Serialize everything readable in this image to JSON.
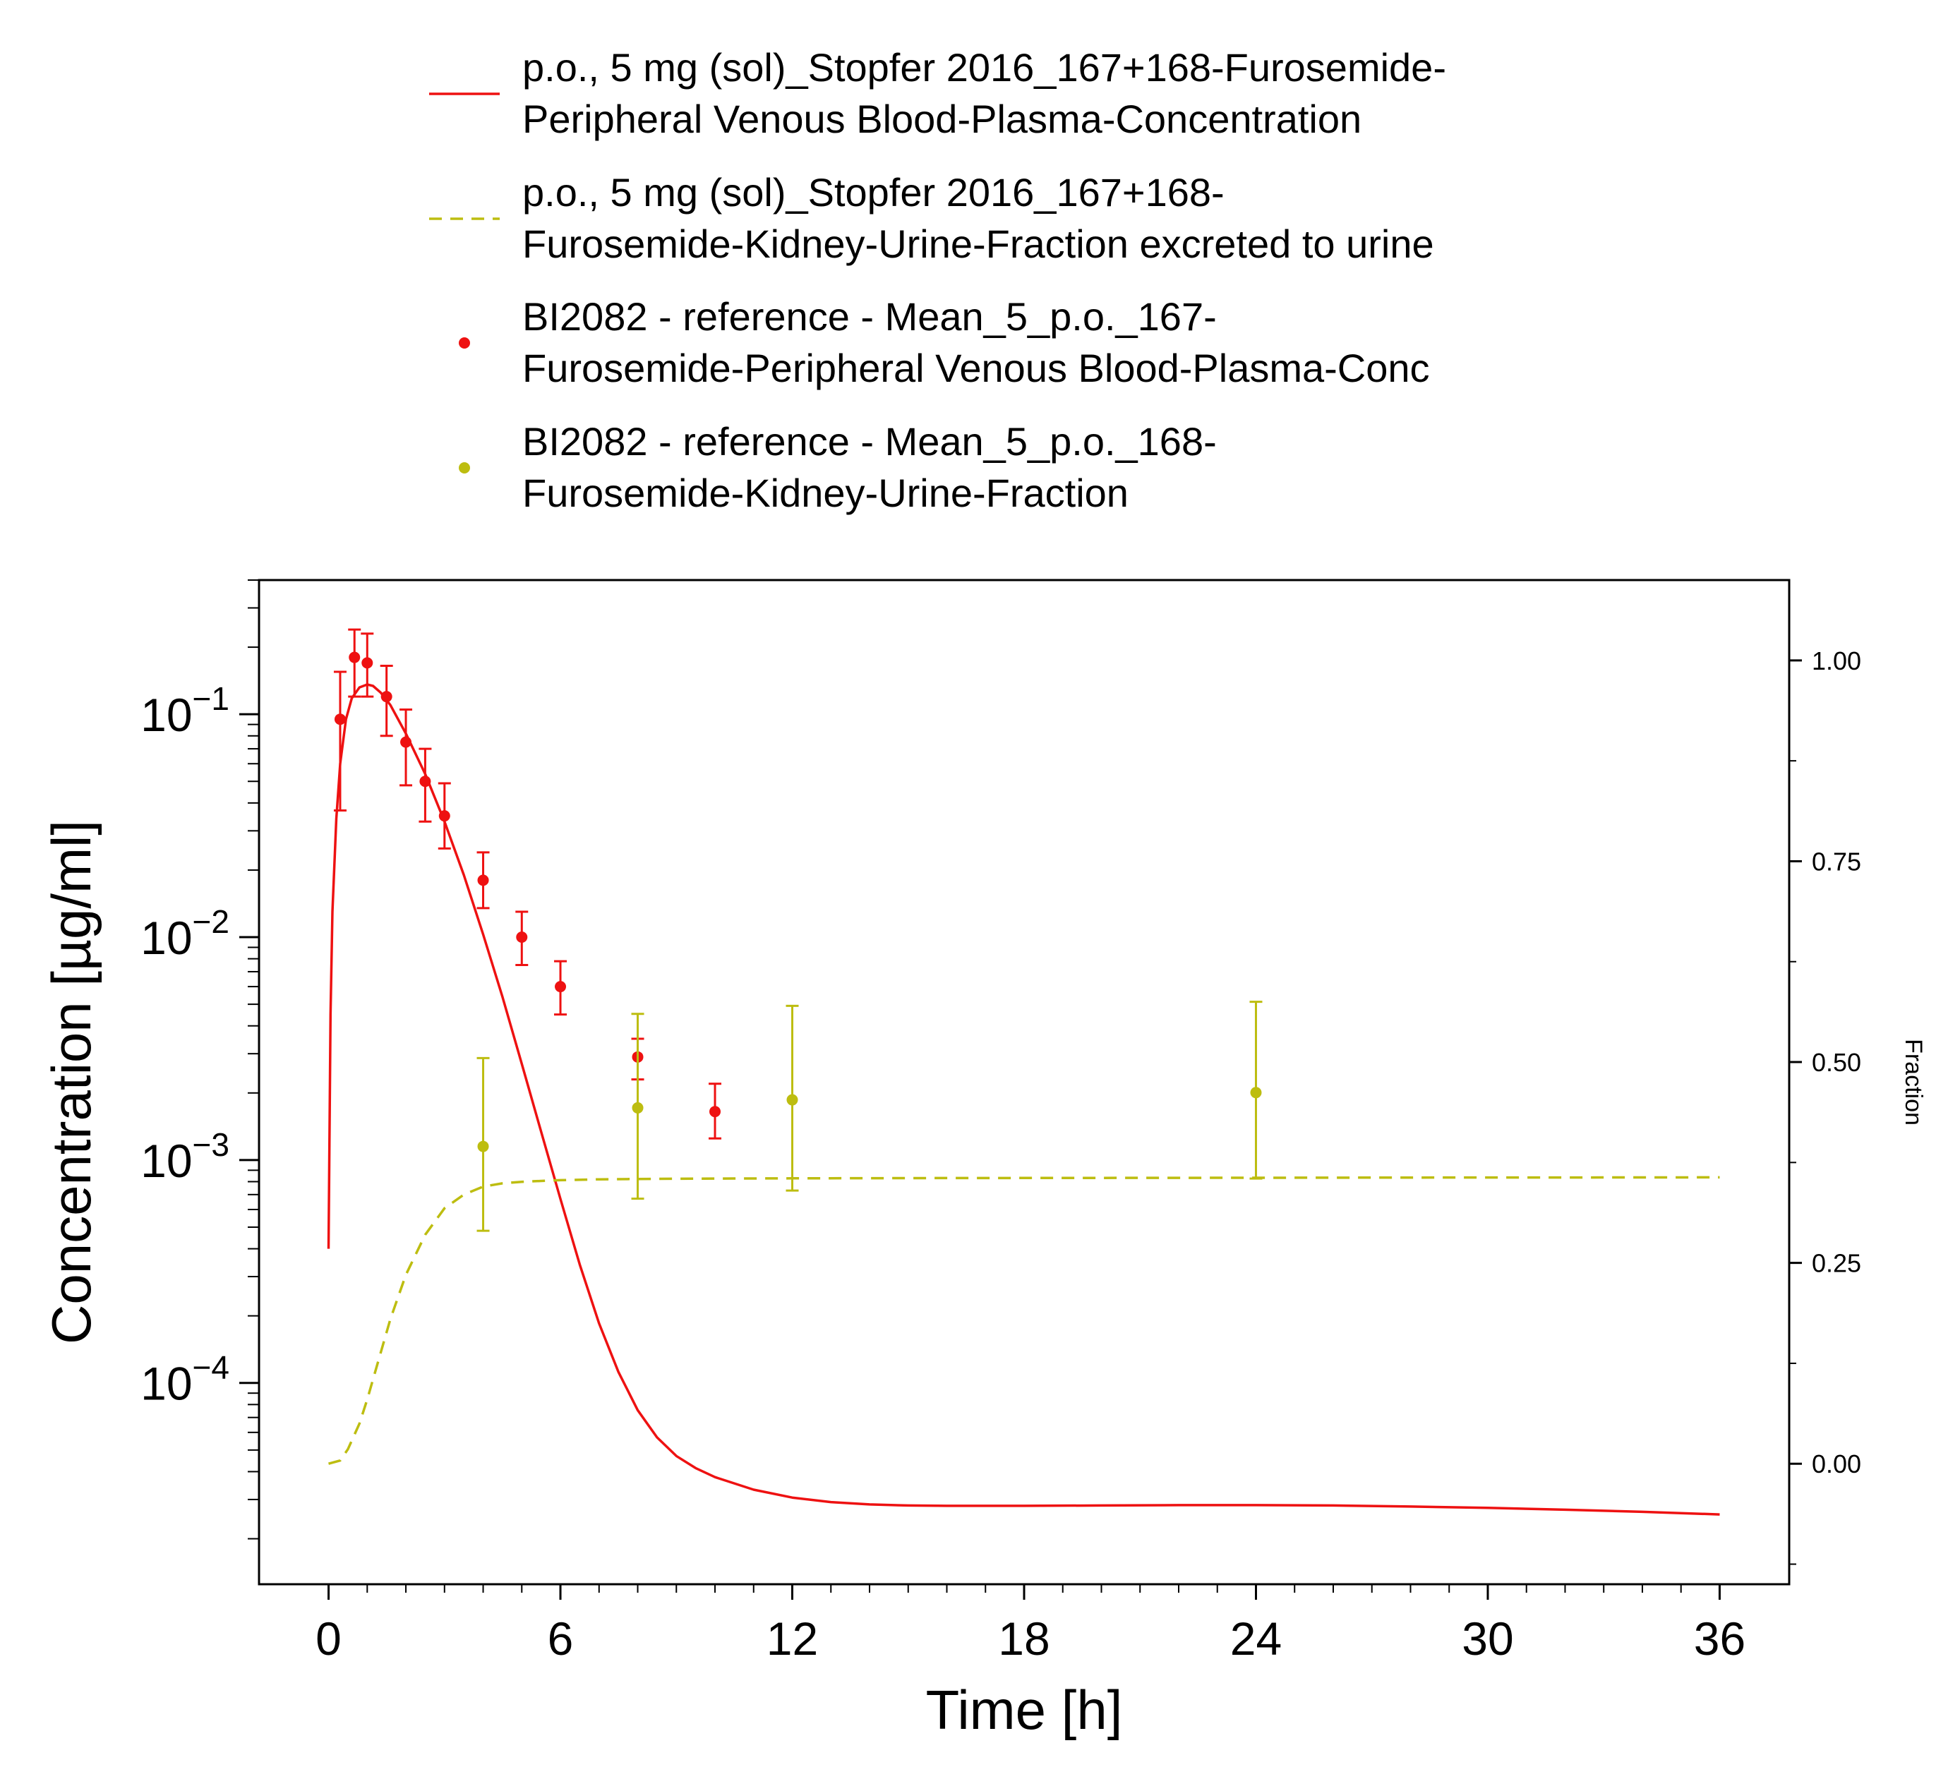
{
  "chart_data": {
    "type": "line",
    "xlabel": "Time [h]",
    "ylabel": "Concentration [µg/ml]",
    "y2label": "Fraction",
    "xlim": [
      -1.8,
      37.8
    ],
    "xticks": [
      0,
      6,
      12,
      18,
      24,
      30,
      36
    ],
    "xtick_labels": [
      "0",
      "6",
      "12",
      "18",
      "24",
      "30",
      "36"
    ],
    "ylim": [
      1.25e-05,
      0.4
    ],
    "yscale": "log",
    "yticks": [
      0.1,
      0.01,
      0.001,
      0.0001
    ],
    "ytick_base": "10",
    "ytick_exponents": [
      "−1",
      "−2",
      "−3",
      "−4"
    ],
    "y2lim": [
      -0.15,
      1.1
    ],
    "y2ticks": [
      0,
      0.25,
      0.5,
      0.75,
      1.0
    ],
    "y2tick_labels": [
      "0.00",
      "0.25",
      "0.50",
      "0.75",
      "1.00"
    ],
    "grid": false,
    "legend_position": "top",
    "colors": {
      "red": "#ee1111",
      "olive": "#bdbd10",
      "axis": "#000000"
    },
    "legend": [
      {
        "kind": "line",
        "color": "#ee1111",
        "lines": [
          "p.o., 5 mg (sol)_Stopfer 2016_167+168-Furosemide-",
          "Peripheral Venous Blood-Plasma-Concentration"
        ]
      },
      {
        "kind": "dashed",
        "color": "#bdbd10",
        "lines": [
          "p.o., 5 mg (sol)_Stopfer 2016_167+168-",
          "Furosemide-Kidney-Urine-Fraction excreted to urine"
        ]
      },
      {
        "kind": "point",
        "color": "#ee1111",
        "lines": [
          "BI2082 - reference - Mean_5_p.o._167-",
          "Furosemide-Peripheral Venous Blood-Plasma-Conc"
        ]
      },
      {
        "kind": "point",
        "color": "#bdbd10",
        "lines": [
          "BI2082 - reference - Mean_5_p.o._168-",
          "Furosemide-Kidney-Urine-Fraction"
        ]
      }
    ],
    "series": [
      {
        "name": "p.o., 5 mg (sol)_Stopfer 2016_167+168-Furosemide-Peripheral Venous Blood-Plasma-Concentration",
        "kind": "line",
        "axis": "left",
        "color": "#ee1111",
        "x": [
          0,
          0.05,
          0.1,
          0.2,
          0.3,
          0.45,
          0.6,
          0.8,
          1.0,
          1.15,
          1.35,
          1.6,
          2.0,
          2.5,
          3.0,
          3.5,
          4.0,
          4.5,
          5.0,
          5.5,
          6.0,
          6.5,
          7.0,
          7.5,
          8.0,
          8.5,
          9.0,
          9.5,
          10.0,
          11.0,
          12.0,
          13.0,
          14.0,
          15.0,
          16.0,
          17.0,
          18.0,
          20.0,
          22.0,
          24.0,
          26.0,
          28.0,
          30.0,
          32.0,
          34.0,
          36.0
        ],
        "y": [
          0.0004,
          0.0045,
          0.013,
          0.034,
          0.06,
          0.095,
          0.118,
          0.132,
          0.136,
          0.134,
          0.125,
          0.11,
          0.082,
          0.054,
          0.033,
          0.019,
          0.0103,
          0.0054,
          0.0027,
          0.00134,
          0.00067,
          0.00034,
          0.000185,
          0.000112,
          7.55e-05,
          5.7e-05,
          4.7e-05,
          4.15e-05,
          3.78e-05,
          3.32e-05,
          3.06e-05,
          2.92e-05,
          2.85e-05,
          2.82e-05,
          2.81e-05,
          2.81e-05,
          2.81e-05,
          2.82e-05,
          2.83e-05,
          2.83e-05,
          2.82e-05,
          2.79e-05,
          2.75e-05,
          2.7e-05,
          2.64e-05,
          2.57e-05
        ]
      },
      {
        "name": "p.o., 5 mg (sol)_Stopfer 2016_167+168-Furosemide-Kidney-Urine-Fraction excreted to urine",
        "kind": "dashed",
        "axis": "right",
        "color": "#bdbd10",
        "x": [
          0,
          0.3,
          0.5,
          0.8,
          1.0,
          1.3,
          1.6,
          2.0,
          2.5,
          3.0,
          3.5,
          4.0,
          4.5,
          5.0,
          5.5,
          6.0,
          7.0,
          8.0,
          10.0,
          12.0,
          16.0,
          20.0,
          24.0,
          28.0,
          32.0,
          36.0
        ],
        "y": [
          0.0,
          0.004,
          0.018,
          0.05,
          0.08,
          0.13,
          0.18,
          0.235,
          0.285,
          0.318,
          0.335,
          0.345,
          0.349,
          0.351,
          0.352,
          0.353,
          0.354,
          0.3545,
          0.355,
          0.3553,
          0.3556,
          0.3558,
          0.356,
          0.3562,
          0.3563,
          0.3565
        ]
      },
      {
        "name": "BI2082 - reference - Mean_5_p.o._167-Furosemide-Peripheral Venous Blood-Plasma-Conc",
        "kind": "point",
        "axis": "left",
        "color": "#ee1111",
        "x": [
          0.3,
          0.67,
          1.0,
          1.5,
          2.0,
          2.5,
          3.0,
          4.0,
          5.0,
          6.0,
          8.0,
          10.0
        ],
        "y": [
          0.095,
          0.18,
          0.17,
          0.12,
          0.075,
          0.05,
          0.035,
          0.018,
          0.01,
          0.006,
          0.0029,
          0.00165
        ],
        "err_low": [
          0.037,
          0.12,
          0.12,
          0.08,
          0.048,
          0.033,
          0.025,
          0.0135,
          0.0075,
          0.0045,
          0.0023,
          0.00125
        ],
        "err_high": [
          0.155,
          0.24,
          0.23,
          0.165,
          0.105,
          0.07,
          0.049,
          0.024,
          0.013,
          0.0078,
          0.0035,
          0.0022
        ]
      },
      {
        "name": "BI2082 - reference - Mean_5_p.o._168-Furosemide-Kidney-Urine-Fraction",
        "kind": "point",
        "axis": "right",
        "color": "#bdbd10",
        "x": [
          4.0,
          8.0,
          12.0,
          24.0
        ],
        "y": [
          0.395,
          0.443,
          0.453,
          0.462
        ],
        "err_low": [
          0.29,
          0.33,
          0.34,
          0.355
        ],
        "err_high": [
          0.505,
          0.56,
          0.57,
          0.575
        ]
      }
    ]
  }
}
